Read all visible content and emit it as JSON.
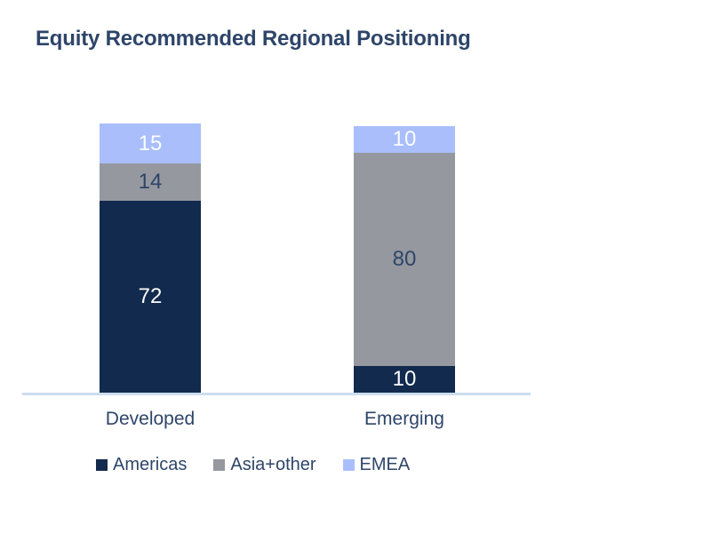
{
  "title": "Equity Recommended Regional Positioning",
  "colors": {
    "background": "#ffffff",
    "title_text": "#2e4569",
    "category_text": "#2e4569",
    "legend_text": "#2e4569",
    "axis_line": "#ccddf0"
  },
  "chart_data": {
    "type": "bar",
    "stacked": true,
    "title": "Equity Recommended Regional Positioning",
    "categories": [
      "Developed",
      "Emerging"
    ],
    "series": [
      {
        "name": "Americas",
        "values": [
          72,
          10
        ],
        "color": "#122a4d",
        "value_label_color": "#fbfcfe"
      },
      {
        "name": "Asia+other",
        "values": [
          14,
          80
        ],
        "color": "#95989f",
        "value_label_color": "#2e4569"
      },
      {
        "name": "EMEA",
        "values": [
          15,
          10
        ],
        "color": "#a9befb",
        "value_label_color": "#fbfcfe"
      }
    ],
    "xlabel": "",
    "ylabel": "",
    "ylim": [
      0,
      101
    ],
    "grid": false,
    "legend_position": "bottom",
    "value_labels_shown": true
  }
}
